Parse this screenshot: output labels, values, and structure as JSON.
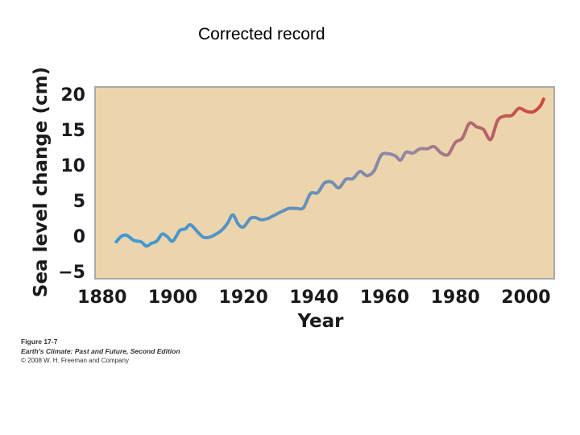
{
  "slide": {
    "title": "Corrected record"
  },
  "caption": {
    "figure_number": "Figure 17-7",
    "book": "Earth's Climate: Past and Future, Second Edition",
    "copyright": "© 2008 W. H. Freeman and Company"
  },
  "colors": {
    "plot_background": "#ecd5ac",
    "frame": "#aaaaaa",
    "series_early": "#3a9ad6",
    "series_late": "#d0463a"
  },
  "chart_data": {
    "type": "line",
    "xlabel": "Year",
    "ylabel": "Sea level change (cm)",
    "xlim": [
      1878,
      2008
    ],
    "ylim": [
      -6,
      21
    ],
    "x_ticks": [
      1880,
      1900,
      1920,
      1940,
      1960,
      1980,
      2000
    ],
    "x_tick_labels": [
      "1880",
      "1900",
      "1920",
      "1940",
      "1960",
      "1980",
      "2000"
    ],
    "y_ticks": [
      20,
      15,
      10,
      5,
      0,
      -5
    ],
    "y_tick_labels": [
      "20",
      "15",
      "10",
      "5",
      "0",
      "−5"
    ],
    "grid": false,
    "series": [
      {
        "color_gradient": [
          "#3a9ad6",
          "#d0463a"
        ],
        "x": [
          1884,
          1885.5,
          1887,
          1889,
          1891,
          1892.5,
          1894,
          1895.5,
          1897,
          1898.5,
          1900,
          1902,
          1903.5,
          1905,
          1907,
          1908.5,
          1910,
          1912,
          1914,
          1915.5,
          1917,
          1918.5,
          1920,
          1922,
          1923.5,
          1925,
          1927,
          1929,
          1931,
          1933,
          1935,
          1937,
          1939,
          1941,
          1943,
          1945,
          1947,
          1949,
          1951,
          1953,
          1955,
          1957,
          1959,
          1961,
          1963,
          1964.5,
          1966,
          1968,
          1970,
          1972,
          1974,
          1976,
          1978,
          1980,
          1982,
          1984,
          1986,
          1988,
          1990,
          1992,
          1994,
          1996,
          1998,
          2000,
          2002,
          2004,
          2005
        ],
        "y": [
          -0.8,
          0.0,
          0.1,
          -0.6,
          -0.8,
          -1.4,
          -1.0,
          -0.7,
          0.3,
          -0.1,
          -0.7,
          0.8,
          1.0,
          1.6,
          0.6,
          -0.1,
          -0.2,
          0.2,
          0.9,
          1.8,
          3.0,
          1.7,
          1.3,
          2.5,
          2.6,
          2.3,
          2.5,
          3.0,
          3.5,
          3.9,
          3.9,
          4.0,
          6.0,
          6.1,
          7.5,
          7.6,
          6.8,
          8.0,
          8.1,
          9.1,
          8.5,
          9.2,
          11.4,
          11.6,
          11.3,
          10.7,
          11.8,
          11.7,
          12.3,
          12.3,
          12.6,
          11.7,
          11.5,
          13.2,
          13.8,
          15.9,
          15.4,
          15.0,
          13.6,
          16.3,
          16.9,
          17.0,
          18.0,
          17.6,
          17.5,
          18.3,
          19.3
        ]
      }
    ]
  }
}
